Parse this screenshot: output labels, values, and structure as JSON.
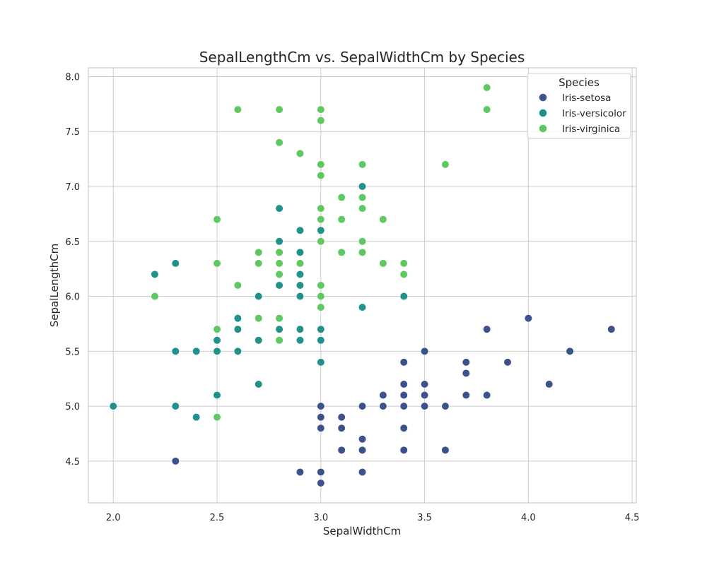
{
  "chart_data": {
    "type": "scatter",
    "title": "SepalLengthCm vs. SepalWidthCm by Species",
    "xlabel": "SepalWidthCm",
    "ylabel": "SepalLengthCm",
    "xlim": [
      1.88,
      4.52
    ],
    "ylim": [
      4.12,
      8.08
    ],
    "xticks": [
      "2.0",
      "2.5",
      "3.0",
      "3.5",
      "4.0",
      "4.5"
    ],
    "yticks": [
      "4.5",
      "5.0",
      "5.5",
      "6.0",
      "6.5",
      "7.0",
      "7.5",
      "8.0"
    ],
    "grid": true,
    "legend": {
      "title": "Species",
      "placement": "top-right"
    },
    "series": [
      {
        "name": "Iris-setosa",
        "color": "#3b528b",
        "points": [
          [
            2.3,
            4.5
          ],
          [
            2.9,
            4.4
          ],
          [
            3.0,
            4.4
          ],
          [
            3.2,
            4.4
          ],
          [
            3.0,
            4.3
          ],
          [
            3.0,
            4.8
          ],
          [
            3.1,
            4.8
          ],
          [
            3.4,
            4.8
          ],
          [
            3.0,
            4.9
          ],
          [
            3.1,
            4.9
          ],
          [
            3.0,
            5.0
          ],
          [
            3.2,
            5.0
          ],
          [
            3.3,
            5.0
          ],
          [
            3.4,
            5.0
          ],
          [
            3.5,
            5.0
          ],
          [
            3.6,
            5.0
          ],
          [
            3.1,
            4.6
          ],
          [
            3.2,
            4.6
          ],
          [
            3.4,
            4.6
          ],
          [
            3.6,
            4.6
          ],
          [
            3.2,
            4.7
          ],
          [
            3.3,
            5.1
          ],
          [
            3.4,
            5.1
          ],
          [
            3.5,
            5.1
          ],
          [
            3.7,
            5.1
          ],
          [
            3.8,
            5.1
          ],
          [
            3.4,
            5.2
          ],
          [
            3.5,
            5.2
          ],
          [
            4.1,
            5.2
          ],
          [
            3.7,
            5.3
          ],
          [
            3.4,
            5.4
          ],
          [
            3.7,
            5.4
          ],
          [
            3.9,
            5.4
          ],
          [
            3.5,
            5.5
          ],
          [
            4.2,
            5.5
          ],
          [
            3.8,
            5.7
          ],
          [
            4.4,
            5.7
          ],
          [
            4.0,
            5.8
          ]
        ]
      },
      {
        "name": "Iris-versicolor",
        "color": "#21918c",
        "points": [
          [
            2.0,
            5.0
          ],
          [
            2.3,
            5.0
          ],
          [
            2.4,
            4.9
          ],
          [
            2.5,
            5.1
          ],
          [
            2.7,
            5.2
          ],
          [
            2.3,
            5.5
          ],
          [
            2.4,
            5.5
          ],
          [
            2.5,
            5.5
          ],
          [
            2.6,
            5.5
          ],
          [
            3.0,
            5.4
          ],
          [
            2.5,
            5.6
          ],
          [
            2.7,
            5.6
          ],
          [
            2.9,
            5.6
          ],
          [
            3.0,
            5.6
          ],
          [
            2.6,
            5.7
          ],
          [
            2.8,
            5.7
          ],
          [
            2.9,
            5.7
          ],
          [
            3.0,
            5.7
          ],
          [
            2.6,
            5.8
          ],
          [
            2.7,
            5.8
          ],
          [
            3.2,
            5.9
          ],
          [
            2.7,
            6.0
          ],
          [
            2.9,
            6.0
          ],
          [
            3.4,
            6.0
          ],
          [
            2.8,
            6.1
          ],
          [
            2.9,
            6.1
          ],
          [
            2.2,
            6.2
          ],
          [
            2.9,
            6.2
          ],
          [
            2.3,
            6.3
          ],
          [
            2.9,
            6.4
          ],
          [
            2.8,
            6.5
          ],
          [
            2.9,
            6.6
          ],
          [
            3.0,
            6.6
          ],
          [
            2.8,
            6.8
          ],
          [
            3.2,
            7.0
          ]
        ]
      },
      {
        "name": "Iris-virginica",
        "color": "#5ec962",
        "points": [
          [
            2.5,
            4.9
          ],
          [
            2.2,
            6.0
          ],
          [
            2.5,
            5.7
          ],
          [
            2.7,
            5.8
          ],
          [
            2.8,
            5.8
          ],
          [
            2.8,
            5.6
          ],
          [
            3.0,
            5.9
          ],
          [
            3.0,
            6.0
          ],
          [
            3.0,
            6.1
          ],
          [
            2.6,
            6.1
          ],
          [
            2.8,
            6.2
          ],
          [
            3.4,
            6.2
          ],
          [
            2.5,
            6.3
          ],
          [
            2.7,
            6.3
          ],
          [
            2.8,
            6.3
          ],
          [
            2.9,
            6.3
          ],
          [
            3.3,
            6.3
          ],
          [
            3.4,
            6.3
          ],
          [
            2.7,
            6.4
          ],
          [
            2.8,
            6.4
          ],
          [
            3.1,
            6.4
          ],
          [
            3.2,
            6.4
          ],
          [
            3.0,
            6.5
          ],
          [
            3.2,
            6.5
          ],
          [
            2.5,
            6.7
          ],
          [
            3.0,
            6.7
          ],
          [
            3.1,
            6.7
          ],
          [
            3.3,
            6.7
          ],
          [
            3.0,
            6.8
          ],
          [
            3.2,
            6.8
          ],
          [
            3.1,
            6.9
          ],
          [
            3.2,
            6.9
          ],
          [
            3.0,
            7.1
          ],
          [
            3.0,
            7.2
          ],
          [
            3.2,
            7.2
          ],
          [
            3.6,
            7.2
          ],
          [
            2.9,
            7.3
          ],
          [
            2.8,
            7.4
          ],
          [
            3.0,
            7.6
          ],
          [
            2.6,
            7.7
          ],
          [
            2.8,
            7.7
          ],
          [
            3.0,
            7.7
          ],
          [
            3.8,
            7.7
          ],
          [
            3.8,
            7.9
          ]
        ]
      }
    ]
  }
}
